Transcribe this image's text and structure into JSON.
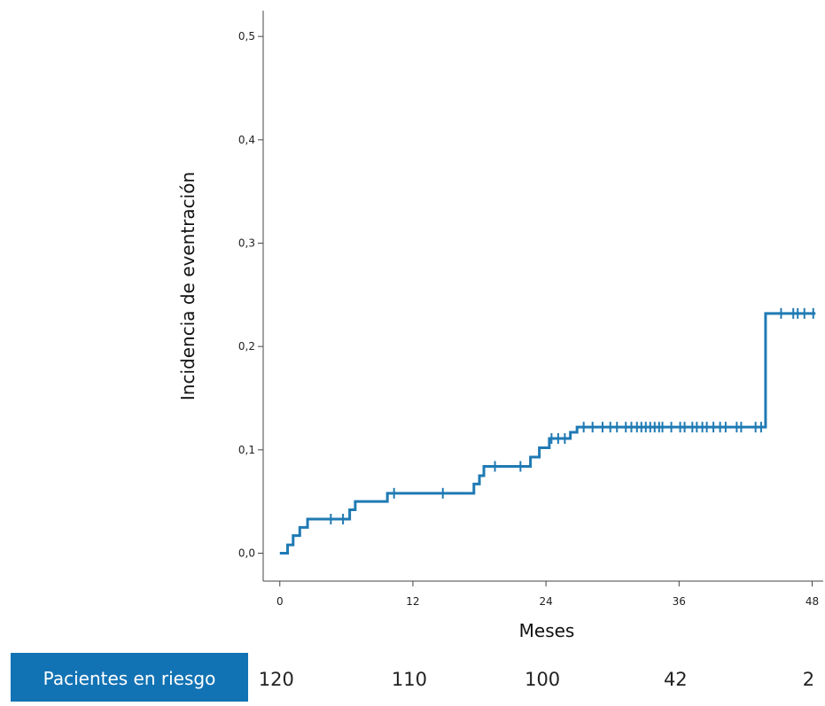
{
  "chart_data": {
    "type": "line",
    "step": true,
    "xlabel": "Meses",
    "ylabel": "Incidencia de eventración",
    "xlim": [
      -1.5,
      49
    ],
    "ylim": [
      -0.027,
      0.525
    ],
    "xticks": [
      0,
      12,
      24,
      36,
      48
    ],
    "yticks": [
      0.0,
      0.1,
      0.2,
      0.3,
      0.4,
      0.5
    ],
    "ytick_labels": [
      "0,0",
      "0,1",
      "0,2",
      "0,3",
      "0,4",
      "0,5"
    ],
    "grid": false,
    "line_color": "#1f7ab4",
    "series": [
      {
        "steps": [
          [
            0,
            0.0
          ],
          [
            0.7,
            0.008
          ],
          [
            1.2,
            0.017
          ],
          [
            1.8,
            0.025
          ],
          [
            2.5,
            0.033
          ],
          [
            5.8,
            0.033
          ],
          [
            6.3,
            0.042
          ],
          [
            6.8,
            0.05
          ],
          [
            9.2,
            0.05
          ],
          [
            9.7,
            0.058
          ],
          [
            17.0,
            0.058
          ],
          [
            17.5,
            0.067
          ],
          [
            18.0,
            0.075
          ],
          [
            18.4,
            0.084
          ],
          [
            21.9,
            0.084
          ],
          [
            22.6,
            0.093
          ],
          [
            23.4,
            0.102
          ],
          [
            24.3,
            0.111
          ],
          [
            25.3,
            0.111
          ],
          [
            26.2,
            0.117
          ],
          [
            26.8,
            0.122
          ],
          [
            43.8,
            0.122
          ],
          [
            43.8,
            0.232
          ],
          [
            48.3,
            0.232
          ]
        ],
        "censor_x": [
          4.6,
          5.7,
          10.3,
          14.7,
          19.4,
          21.7,
          24.5,
          25.1,
          25.7,
          27.4,
          28.2,
          29.1,
          29.8,
          30.4,
          31.2,
          31.7,
          32.2,
          32.6,
          33.0,
          33.4,
          33.8,
          34.2,
          34.5,
          35.3,
          36.1,
          36.5,
          37.2,
          37.6,
          38.1,
          38.5,
          39.1,
          39.7,
          40.2,
          41.2,
          41.6,
          42.9,
          43.4,
          45.2,
          46.3,
          46.7,
          47.3,
          48.1
        ]
      }
    ],
    "risk_table": {
      "label": "Pacientes en riesgo",
      "times": [
        0,
        12,
        24,
        36,
        48
      ],
      "values": [
        "120",
        "110",
        "100",
        "42",
        "2"
      ],
      "label_bg": "#1273b4"
    }
  }
}
